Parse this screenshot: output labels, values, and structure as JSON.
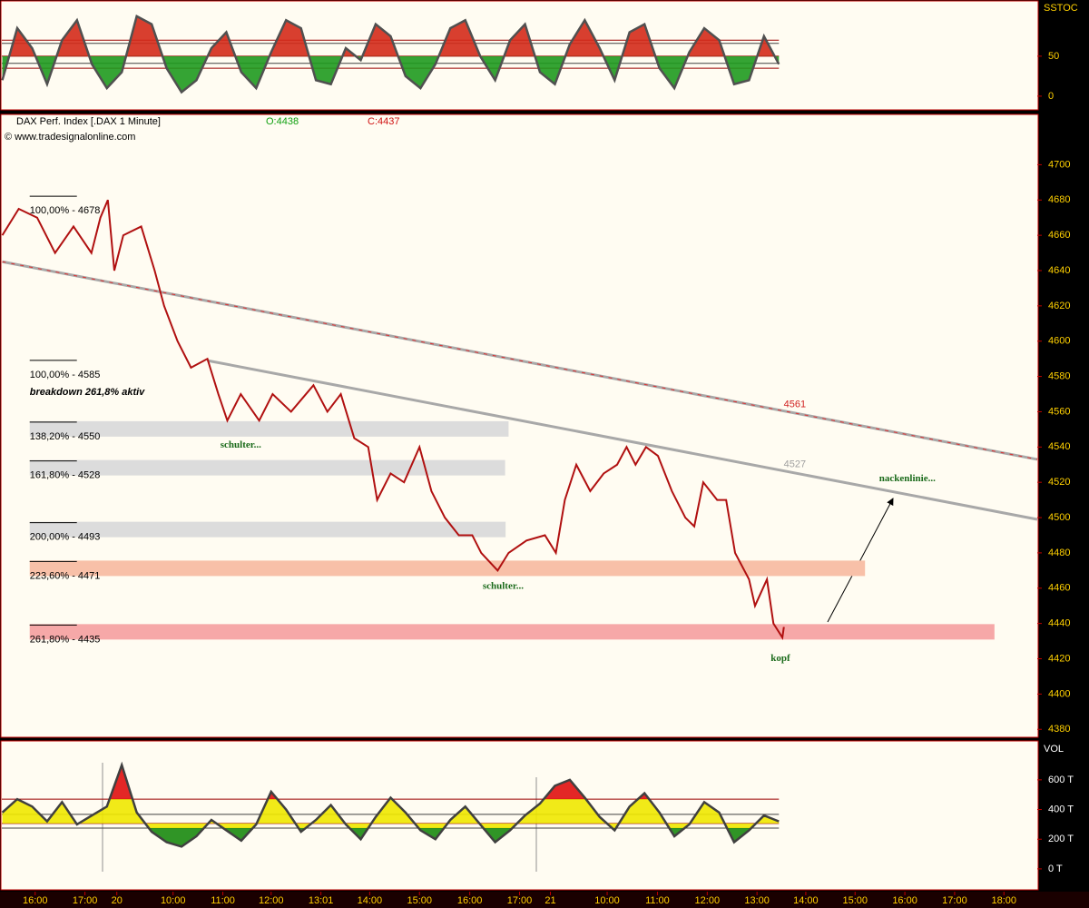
{
  "chart_data": [
    {
      "type": "line",
      "indicator": "SSTOC",
      "xlim": [
        -0.67,
        20.13
      ],
      "ylim": [
        -16,
        118
      ],
      "yticks": [
        0,
        50
      ],
      "hlines": [
        70,
        66,
        50,
        41,
        35
      ],
      "fill": {
        "base": 50,
        "upper": 50,
        "lower": 50,
        "colors": [
          "#d42a1a",
          "#f0e000",
          "#1f9a1f"
        ]
      },
      "color": "#505050",
      "x": [
        -0.66,
        -0.36,
        -0.06,
        0.24,
        0.54,
        0.84,
        1.14,
        1.44,
        1.74,
        2.04,
        2.34,
        2.64,
        2.94,
        3.24,
        3.54,
        3.84,
        4.14,
        4.44,
        4.74,
        5.04,
        5.34,
        5.64,
        5.94,
        6.24,
        6.54,
        6.84,
        7.14,
        7.44,
        7.74,
        8.04,
        8.34,
        8.64,
        8.94,
        9.24,
        9.54,
        9.84,
        10.14,
        10.44,
        10.74,
        11.04,
        11.34,
        11.64,
        11.94,
        12.24,
        12.54,
        12.84,
        13.14,
        13.44,
        13.74,
        14.04,
        14.34,
        14.64,
        14.94
      ],
      "values": [
        20,
        85,
        60,
        15,
        70,
        95,
        40,
        10,
        30,
        100,
        90,
        35,
        5,
        20,
        60,
        80,
        30,
        10,
        55,
        95,
        85,
        20,
        15,
        60,
        45,
        90,
        75,
        25,
        10,
        40,
        85,
        95,
        50,
        20,
        70,
        90,
        30,
        15,
        65,
        95,
        60,
        20,
        80,
        90,
        35,
        10,
        55,
        85,
        70,
        15,
        20,
        75,
        40
      ]
    },
    {
      "type": "line",
      "title": "DAX Perf. Index [.DAX 1 Minute]",
      "open": "O:4438",
      "close": "C:4437",
      "source": "© www.tradesignalonline.com",
      "xlim": [
        -0.67,
        20.13
      ],
      "ylim": [
        4376,
        4728
      ],
      "color": "#b01010",
      "yticks": [
        4380,
        4400,
        4420,
        4440,
        4460,
        4480,
        4500,
        4520,
        4540,
        4560,
        4580,
        4600,
        4620,
        4640,
        4660,
        4680,
        4700
      ],
      "x": [
        -0.66,
        -0.33,
        0.04,
        0.4,
        0.77,
        1.13,
        1.31,
        1.46,
        1.59,
        1.77,
        2.13,
        2.4,
        2.59,
        2.86,
        3.13,
        3.46,
        3.68,
        3.86,
        4.13,
        4.5,
        4.77,
        5.14,
        5.59,
        5.87,
        6.14,
        6.41,
        6.69,
        6.87,
        7.14,
        7.41,
        7.72,
        7.96,
        8.23,
        8.51,
        8.78,
        8.96,
        9.29,
        9.51,
        9.87,
        10.24,
        10.46,
        10.64,
        10.87,
        11.15,
        11.42,
        11.69,
        11.88,
        12.06,
        12.27,
        12.51,
        12.79,
        13.06,
        13.24,
        13.42,
        13.7,
        13.88,
        14.06,
        14.34,
        14.46,
        14.7,
        14.83,
        15.01,
        15.04
      ],
      "values": [
        4660,
        4675,
        4670,
        4650,
        4665,
        4650,
        4670,
        4680,
        4640,
        4660,
        4665,
        4640,
        4620,
        4600,
        4585,
        4590,
        4570,
        4555,
        4570,
        4555,
        4570,
        4560,
        4575,
        4560,
        4570,
        4545,
        4540,
        4510,
        4525,
        4520,
        4540,
        4515,
        4500,
        4490,
        4490,
        4480,
        4470,
        4480,
        4487,
        4490,
        4480,
        4510,
        4530,
        4515,
        4525,
        4530,
        4540,
        4530,
        4540,
        4535,
        4515,
        4500,
        4495,
        4520,
        4510,
        4510,
        4480,
        4465,
        4450,
        4465,
        4440,
        4432,
        4438
      ],
      "trendlines": [
        {
          "x": [
            -0.66,
            20.13
          ],
          "y": [
            4645,
            4533
          ],
          "color": "#a8a8a8",
          "dash_color": "#e03030"
        },
        {
          "x": [
            3.46,
            20.13
          ],
          "y": [
            4589,
            4499
          ],
          "color": "#a8a8a8"
        }
      ],
      "band_start": -0.11,
      "fib_levels": [
        {
          "label": "100,00% - 4678",
          "value": 4678
        },
        {
          "label": "100,00% - 4585",
          "value": 4585
        },
        {
          "label": "138,20% - 4550",
          "value": 4550,
          "band_end": 9.51,
          "band_color": "#dcdcdc"
        },
        {
          "label": "161,80% - 4528",
          "value": 4528,
          "band_end": 9.44,
          "band_color": "#dcdcdc"
        },
        {
          "label": "200,00% - 4493",
          "value": 4493,
          "band_end": 9.45,
          "band_color": "#dcdcdc"
        },
        {
          "label": "223,60% - 4471",
          "value": 4471,
          "band_end": 16.67,
          "band_color": "#f8c0a8"
        },
        {
          "label": "261,80% - 4435",
          "value": 4435,
          "band_end": 19.27,
          "band_color": "#f6a8a8"
        }
      ],
      "annotations": [
        {
          "text": "breakdown 261,8% aktiv",
          "x": -0.11,
          "y": 4571,
          "color": "#000000",
          "font": "italic"
        },
        {
          "text": "schulter...",
          "x": 4.13,
          "y": 4541,
          "color": "#1a6a1a",
          "font": "serif"
        },
        {
          "text": "schulter...",
          "x": 9.4,
          "y": 4461,
          "color": "#1a6a1a",
          "font": "serif"
        },
        {
          "text": "kopf",
          "x": 14.97,
          "y": 4420,
          "color": "#1a6a1a",
          "font": "serif"
        },
        {
          "text": "nackenlinie...",
          "x": 17.52,
          "y": 4522,
          "color": "#1a6a1a",
          "font": "serif"
        },
        {
          "text": "4561",
          "x": 15.26,
          "y": 4564,
          "color": "#d02020",
          "font": "plain"
        },
        {
          "text": "4527",
          "x": 15.26,
          "y": 4530,
          "color": "#a0a0a0",
          "font": "plain"
        }
      ]
    },
    {
      "type": "line",
      "indicator": "VOL",
      "xlim": [
        -0.67,
        20.13
      ],
      "ylim": [
        -135,
        856
      ],
      "color": "#404040",
      "yticks": [
        {
          "value": 0,
          "label": "0 T"
        },
        {
          "value": 200,
          "label": "200 T"
        },
        {
          "value": 400,
          "label": "400 T"
        },
        {
          "value": 600,
          "label": "600 T"
        }
      ],
      "hlines": [
        470,
        367,
        306,
        275
      ],
      "fill": {
        "base": 306,
        "upper": 470,
        "lower": 275,
        "colors": [
          "#e01010",
          "#f0e800",
          "#1a8a10"
        ]
      },
      "x": [
        -0.66,
        -0.36,
        -0.06,
        0.24,
        0.54,
        0.84,
        1.14,
        1.44,
        1.74,
        2.04,
        2.34,
        2.64,
        2.94,
        3.24,
        3.54,
        3.84,
        4.14,
        4.44,
        4.74,
        5.04,
        5.34,
        5.64,
        5.94,
        6.24,
        6.54,
        6.84,
        7.14,
        7.44,
        7.74,
        8.04,
        8.34,
        8.64,
        8.94,
        9.24,
        9.54,
        9.84,
        10.14,
        10.44,
        10.74,
        11.04,
        11.34,
        11.64,
        11.94,
        12.24,
        12.54,
        12.84,
        13.14,
        13.44,
        13.74,
        14.04,
        14.34,
        14.64,
        14.94
      ],
      "values": [
        380,
        470,
        420,
        320,
        450,
        300,
        360,
        420,
        700,
        380,
        250,
        180,
        150,
        220,
        330,
        260,
        190,
        300,
        520,
        400,
        250,
        330,
        430,
        300,
        200,
        350,
        480,
        380,
        260,
        200,
        330,
        420,
        300,
        180,
        260,
        360,
        440,
        560,
        600,
        480,
        350,
        260,
        420,
        510,
        380,
        220,
        300,
        450,
        380,
        180,
        260,
        360,
        320
      ],
      "xticks": [
        {
          "value": 0,
          "label": "16:00"
        },
        {
          "value": 1,
          "label": "17:00"
        },
        {
          "value": 1.64,
          "label": "20"
        },
        {
          "value": 2.77,
          "label": "10:00"
        },
        {
          "value": 3.77,
          "label": "11:00"
        },
        {
          "value": 4.74,
          "label": "12:00"
        },
        {
          "value": 5.74,
          "label": "13:01"
        },
        {
          "value": 6.72,
          "label": "14:00"
        },
        {
          "value": 7.72,
          "label": "15:00"
        },
        {
          "value": 8.73,
          "label": "16:00"
        },
        {
          "value": 9.73,
          "label": "17:00"
        },
        {
          "value": 10.35,
          "label": "21"
        },
        {
          "value": 11.49,
          "label": "10:00"
        },
        {
          "value": 12.5,
          "label": "11:00"
        },
        {
          "value": 13.5,
          "label": "12:00"
        },
        {
          "value": 14.5,
          "label": "13:00"
        },
        {
          "value": 15.48,
          "label": "14:00"
        },
        {
          "value": 16.47,
          "label": "15:00"
        },
        {
          "value": 17.47,
          "label": "16:00"
        },
        {
          "value": 18.47,
          "label": "17:00"
        },
        {
          "value": 19.46,
          "label": "18:00"
        }
      ]
    }
  ]
}
